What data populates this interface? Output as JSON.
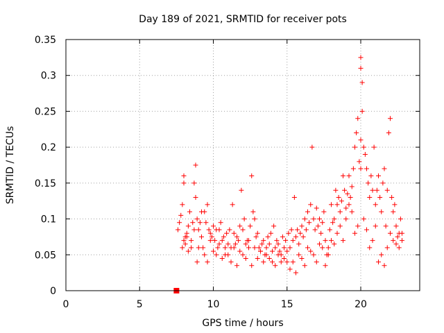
{
  "chart_data": {
    "type": "scatter",
    "title": "Day 189 of 2021, SRMTID for receiver pots",
    "xlabel": "GPS time / hours",
    "ylabel": "SRMTID / TECUs",
    "xlim": [
      0,
      24
    ],
    "ylim": [
      0,
      0.35
    ],
    "xticks": [
      0,
      5,
      10,
      15,
      20
    ],
    "yticks": [
      0,
      0.05,
      0.1,
      0.15,
      0.2,
      0.25,
      0.3,
      0.35
    ],
    "xtick_labels": [
      "0",
      "5",
      "10",
      "15",
      "20"
    ],
    "ytick_labels": [
      "0",
      "0.05",
      "0.1",
      "0.15",
      "0.2",
      "0.25",
      "0.3",
      "0.35"
    ],
    "grid": true,
    "legend": "none",
    "marker_color": "#ff0000",
    "series": [
      {
        "marker": "square",
        "x": [
          7.5
        ],
        "y": [
          0.0
        ]
      },
      {
        "marker": "plus",
        "x": [
          7.6,
          7.8,
          7.9,
          8.0,
          8.0,
          8.1,
          8.1,
          8.2,
          8.3,
          8.4,
          8.5,
          8.6,
          8.7,
          8.8,
          8.8,
          8.9,
          9.0,
          9.1,
          9.2,
          9.3,
          9.4,
          9.5,
          9.6,
          9.7,
          9.8,
          9.9,
          10.0,
          10.1,
          10.2,
          10.3,
          10.4,
          10.5,
          10.6,
          10.7,
          10.8,
          10.9,
          11.0,
          11.1,
          11.2,
          11.3,
          11.4,
          11.5,
          11.6,
          11.7,
          11.8,
          11.9,
          12.0,
          12.1,
          12.2,
          12.3,
          12.4,
          12.5,
          12.6,
          12.7,
          12.8,
          12.9,
          13.0,
          13.1,
          13.2,
          13.3,
          13.4,
          13.5,
          13.6,
          13.7,
          13.8,
          13.9,
          14.0,
          14.1,
          14.2,
          14.3,
          14.4,
          14.5,
          14.6,
          14.7,
          14.8,
          14.9,
          15.0,
          15.1,
          15.2,
          15.3,
          15.4,
          15.5,
          15.6,
          15.7,
          15.8,
          15.9,
          16.0,
          16.1,
          16.2,
          16.3,
          16.4,
          16.5,
          16.6,
          16.7,
          16.8,
          16.9,
          17.0,
          17.1,
          17.2,
          17.3,
          17.4,
          17.5,
          17.6,
          17.7,
          17.8,
          17.9,
          18.0,
          18.1,
          18.2,
          18.3,
          18.4,
          18.5,
          18.6,
          18.7,
          18.8,
          18.9,
          19.0,
          19.1,
          19.2,
          19.3,
          19.4,
          19.5,
          19.6,
          19.7,
          19.8,
          19.9,
          20.0,
          20.0,
          20.0,
          20.0,
          20.1,
          20.1,
          20.2,
          20.3,
          20.4,
          20.5,
          20.6,
          20.7,
          20.8,
          20.9,
          21.0,
          21.1,
          21.2,
          21.3,
          21.4,
          21.5,
          21.6,
          21.7,
          21.8,
          21.9,
          22.0,
          22.1,
          22.2,
          22.3,
          22.4,
          22.5,
          22.6,
          22.7,
          22.8,
          7.7,
          7.9,
          8.0,
          8.2,
          8.3,
          8.5,
          8.7,
          8.9,
          9.0,
          9.2,
          9.4,
          9.6,
          9.8,
          10.0,
          10.2,
          10.4,
          10.6,
          10.8,
          11.0,
          11.2,
          11.4,
          11.6,
          11.8,
          12.0,
          12.2,
          12.4,
          12.6,
          12.8,
          13.0,
          13.2,
          13.4,
          13.6,
          13.8,
          14.0,
          14.2,
          14.4,
          14.6,
          14.8,
          15.0,
          15.2,
          15.4,
          15.6,
          15.8,
          16.0,
          16.2,
          16.4,
          16.6,
          16.8,
          17.0,
          17.2,
          17.4,
          17.6,
          17.8,
          18.0,
          18.2,
          18.4,
          18.6,
          18.8,
          19.0,
          19.2,
          19.4,
          19.6,
          19.8,
          20.2,
          20.4,
          20.6,
          20.8,
          21.0,
          21.2,
          21.4,
          21.6,
          21.8,
          22.0,
          22.2,
          22.4,
          22.6,
          22.8
        ],
        "y": [
          0.085,
          0.105,
          0.12,
          0.15,
          0.16,
          0.065,
          0.075,
          0.08,
          0.09,
          0.11,
          0.07,
          0.095,
          0.15,
          0.175,
          0.13,
          0.1,
          0.085,
          0.095,
          0.075,
          0.06,
          0.11,
          0.095,
          0.12,
          0.085,
          0.08,
          0.075,
          0.09,
          0.07,
          0.085,
          0.06,
          0.065,
          0.095,
          0.07,
          0.075,
          0.06,
          0.08,
          0.05,
          0.085,
          0.06,
          0.12,
          0.08,
          0.065,
          0.075,
          0.07,
          0.09,
          0.14,
          0.085,
          0.1,
          0.065,
          0.07,
          0.06,
          0.09,
          0.16,
          0.11,
          0.1,
          0.075,
          0.08,
          0.06,
          0.055,
          0.065,
          0.07,
          0.05,
          0.06,
          0.075,
          0.065,
          0.08,
          0.055,
          0.09,
          0.06,
          0.07,
          0.065,
          0.055,
          0.05,
          0.075,
          0.06,
          0.07,
          0.04,
          0.08,
          0.06,
          0.085,
          0.07,
          0.13,
          0.075,
          0.085,
          0.065,
          0.08,
          0.09,
          0.075,
          0.1,
          0.085,
          0.11,
          0.095,
          0.12,
          0.2,
          0.1,
          0.085,
          0.115,
          0.09,
          0.1,
          0.08,
          0.095,
          0.11,
          0.07,
          0.05,
          0.06,
          0.085,
          0.12,
          0.095,
          0.1,
          0.14,
          0.12,
          0.13,
          0.11,
          0.125,
          0.16,
          0.14,
          0.115,
          0.135,
          0.16,
          0.13,
          0.145,
          0.17,
          0.2,
          0.22,
          0.24,
          0.18,
          0.17,
          0.21,
          0.325,
          0.31,
          0.29,
          0.25,
          0.2,
          0.19,
          0.17,
          0.15,
          0.13,
          0.16,
          0.14,
          0.2,
          0.12,
          0.14,
          0.16,
          0.13,
          0.11,
          0.15,
          0.17,
          0.09,
          0.14,
          0.22,
          0.24,
          0.13,
          0.11,
          0.12,
          0.09,
          0.075,
          0.08,
          0.1,
          0.08,
          0.095,
          0.06,
          0.07,
          0.075,
          0.055,
          0.06,
          0.085,
          0.04,
          0.06,
          0.11,
          0.05,
          0.04,
          0.07,
          0.055,
          0.05,
          0.085,
          0.045,
          0.05,
          0.065,
          0.04,
          0.06,
          0.035,
          0.055,
          0.05,
          0.045,
          0.07,
          0.035,
          0.06,
          0.045,
          0.055,
          0.04,
          0.05,
          0.045,
          0.04,
          0.035,
          0.05,
          0.04,
          0.045,
          0.055,
          0.03,
          0.04,
          0.025,
          0.05,
          0.045,
          0.035,
          0.06,
          0.055,
          0.05,
          0.04,
          0.065,
          0.06,
          0.035,
          0.05,
          0.07,
          0.065,
          0.08,
          0.09,
          0.07,
          0.1,
          0.12,
          0.11,
          0.08,
          0.09,
          0.1,
          0.085,
          0.06,
          0.07,
          0.09,
          0.04,
          0.05,
          0.035,
          0.06,
          0.08,
          0.07,
          0.065,
          0.06,
          0.07
        ]
      }
    ]
  }
}
